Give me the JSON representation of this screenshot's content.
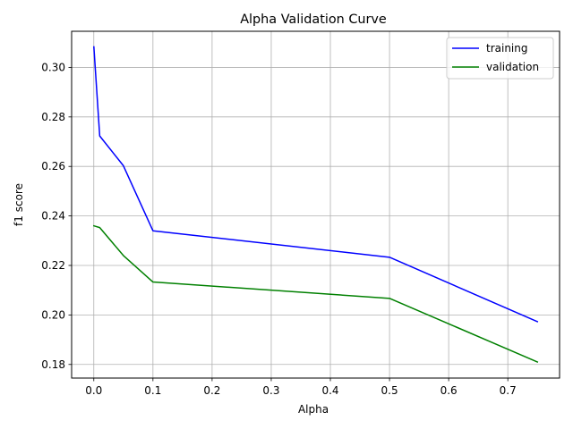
{
  "chart_data": {
    "type": "line",
    "title": "Alpha Validation Curve",
    "xlabel": "Alpha",
    "ylabel": "f1 score",
    "xlim": [
      -0.0375,
      0.7875
    ],
    "ylim": [
      0.1745,
      0.3146
    ],
    "xticks": [
      0.0,
      0.1,
      0.2,
      0.3,
      0.4,
      0.5,
      0.6,
      0.7
    ],
    "xtick_labels": [
      "0.0",
      "0.1",
      "0.2",
      "0.3",
      "0.4",
      "0.5",
      "0.6",
      "0.7"
    ],
    "yticks": [
      0.18,
      0.2,
      0.22,
      0.24,
      0.26,
      0.28,
      0.3
    ],
    "ytick_labels": [
      "0.18",
      "0.20",
      "0.22",
      "0.24",
      "0.26",
      "0.28",
      "0.30"
    ],
    "grid": true,
    "legend_position": "top-right",
    "x": [
      0.0001,
      0.01,
      0.05,
      0.1,
      0.5,
      0.75
    ],
    "series": [
      {
        "name": "training",
        "color": "#0000ff",
        "values": [
          0.3083,
          0.2723,
          0.2603,
          0.234,
          0.2233,
          0.1973
        ]
      },
      {
        "name": "validation",
        "color": "#008000",
        "values": [
          0.236,
          0.2353,
          0.224,
          0.2133,
          0.2067,
          0.181
        ]
      }
    ]
  }
}
